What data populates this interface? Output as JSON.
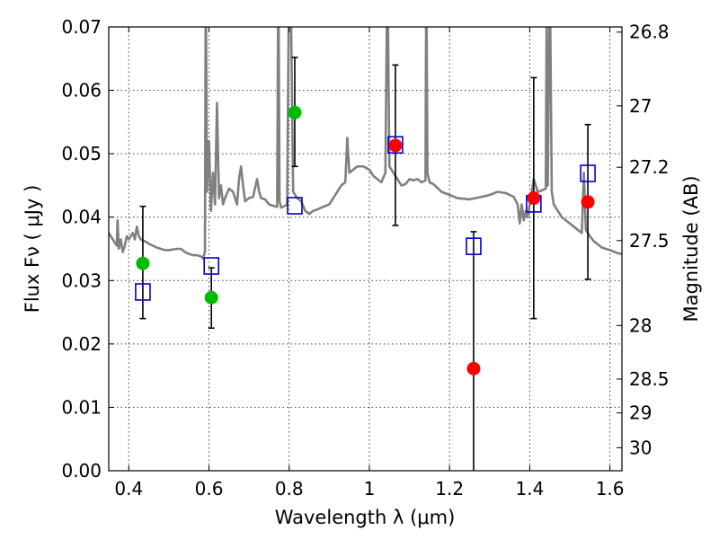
{
  "chart_data": {
    "type": "scatter",
    "xlabel": "Wavelength  λ (μm)",
    "ylabel": "Flux  Fν  ( μJy )",
    "ylabel_right": "Magnitude (AB)",
    "xlim": [
      0.35,
      1.63
    ],
    "ylim": [
      0.0,
      0.07
    ],
    "x_ticks": [
      0.4,
      0.6,
      0.8,
      1.0,
      1.2,
      1.4,
      1.6
    ],
    "x_tick_labels": [
      "0.4",
      "0.6",
      "0.8",
      "1",
      "1.2",
      "1.4",
      "1.6"
    ],
    "y_ticks": [
      0.0,
      0.01,
      0.02,
      0.03,
      0.04,
      0.05,
      0.06,
      0.07
    ],
    "y_tick_labels": [
      "0.00",
      "0.01",
      "0.02",
      "0.03",
      "0.04",
      "0.05",
      "0.06",
      "0.07"
    ],
    "right_ticks": [
      {
        "label": "26.8",
        "mag": 26.8
      },
      {
        "label": "27",
        "mag": 27.0
      },
      {
        "label": "27.2",
        "mag": 27.2
      },
      {
        "label": "27.5",
        "mag": 27.5
      },
      {
        "label": "28",
        "mag": 28.0
      },
      {
        "label": "28.5",
        "mag": 28.5
      },
      {
        "label": "29",
        "mag": 29.0
      },
      {
        "label": "30",
        "mag": 30.0
      }
    ],
    "grid": true,
    "colors": {
      "spectrum": "#808080",
      "green_points": "#00bb00",
      "red_points": "#ff0000",
      "model_squares": "#0000cc",
      "error_bars": "#000000"
    },
    "series": [
      {
        "type": "line",
        "points": [
          [
            0.35,
            0.0375
          ],
          [
            0.36,
            0.0365
          ],
          [
            0.365,
            0.036
          ],
          [
            0.37,
            0.0355
          ],
          [
            0.372,
            0.0395
          ],
          [
            0.375,
            0.035
          ],
          [
            0.38,
            0.0365
          ],
          [
            0.385,
            0.0345
          ],
          [
            0.39,
            0.0355
          ],
          [
            0.395,
            0.037
          ],
          [
            0.4,
            0.0365
          ],
          [
            0.41,
            0.0375
          ],
          [
            0.415,
            0.0365
          ],
          [
            0.42,
            0.0385
          ],
          [
            0.425,
            0.037
          ],
          [
            0.43,
            0.0365
          ],
          [
            0.44,
            0.0362
          ],
          [
            0.45,
            0.0358
          ],
          [
            0.46,
            0.0355
          ],
          [
            0.47,
            0.0352
          ],
          [
            0.48,
            0.035
          ],
          [
            0.49,
            0.0348
          ],
          [
            0.5,
            0.0348
          ],
          [
            0.51,
            0.0349
          ],
          [
            0.52,
            0.035
          ],
          [
            0.53,
            0.035
          ],
          [
            0.54,
            0.0345
          ],
          [
            0.55,
            0.0342
          ],
          [
            0.56,
            0.034
          ],
          [
            0.57,
            0.034
          ],
          [
            0.58,
            0.0338
          ],
          [
            0.585,
            0.0335
          ],
          [
            0.59,
            0.0345
          ],
          [
            0.592,
            0.08
          ],
          [
            0.595,
            0.044
          ],
          [
            0.6,
            0.052
          ],
          [
            0.605,
            0.041
          ],
          [
            0.61,
            0.047
          ],
          [
            0.615,
            0.042
          ],
          [
            0.62,
            0.058
          ],
          [
            0.625,
            0.043
          ],
          [
            0.63,
            0.045
          ],
          [
            0.635,
            0.042
          ],
          [
            0.64,
            0.043
          ],
          [
            0.65,
            0.0445
          ],
          [
            0.66,
            0.044
          ],
          [
            0.67,
            0.042
          ],
          [
            0.675,
            0.046
          ],
          [
            0.68,
            0.048
          ],
          [
            0.685,
            0.045
          ],
          [
            0.69,
            0.0425
          ],
          [
            0.7,
            0.043
          ],
          [
            0.71,
            0.0432
          ],
          [
            0.72,
            0.046
          ],
          [
            0.725,
            0.044
          ],
          [
            0.73,
            0.043
          ],
          [
            0.74,
            0.0428
          ],
          [
            0.75,
            0.042
          ],
          [
            0.76,
            0.0418
          ],
          [
            0.77,
            0.0416
          ],
          [
            0.773,
            0.08
          ],
          [
            0.776,
            0.0425
          ],
          [
            0.78,
            0.0415
          ],
          [
            0.79,
            0.0418
          ],
          [
            0.795,
            0.042
          ],
          [
            0.8,
            0.08
          ],
          [
            0.805,
            0.07
          ],
          [
            0.81,
            0.044
          ],
          [
            0.82,
            0.043
          ],
          [
            0.83,
            0.0425
          ],
          [
            0.84,
            0.041
          ],
          [
            0.85,
            0.0405
          ],
          [
            0.86,
            0.041
          ],
          [
            0.87,
            0.0412
          ],
          [
            0.88,
            0.0415
          ],
          [
            0.9,
            0.042
          ],
          [
            0.91,
            0.043
          ],
          [
            0.92,
            0.044
          ],
          [
            0.93,
            0.045
          ],
          [
            0.94,
            0.0455
          ],
          [
            0.945,
            0.0525
          ],
          [
            0.95,
            0.047
          ],
          [
            0.96,
            0.0475
          ],
          [
            0.97,
            0.048
          ],
          [
            0.985,
            0.048
          ],
          [
            1.0,
            0.0475
          ],
          [
            1.01,
            0.0465
          ],
          [
            1.02,
            0.046
          ],
          [
            1.03,
            0.0455
          ],
          [
            1.04,
            0.047
          ],
          [
            1.045,
            0.08
          ],
          [
            1.05,
            0.048
          ],
          [
            1.06,
            0.047
          ],
          [
            1.07,
            0.046
          ],
          [
            1.08,
            0.045
          ],
          [
            1.09,
            0.0452
          ],
          [
            1.1,
            0.046
          ],
          [
            1.11,
            0.0458
          ],
          [
            1.12,
            0.046
          ],
          [
            1.13,
            0.0455
          ],
          [
            1.14,
            0.0458
          ],
          [
            1.142,
            0.08
          ],
          [
            1.145,
            0.047
          ],
          [
            1.15,
            0.0455
          ],
          [
            1.16,
            0.0452
          ],
          [
            1.18,
            0.044
          ],
          [
            1.2,
            0.0435
          ],
          [
            1.22,
            0.043
          ],
          [
            1.25,
            0.0428
          ],
          [
            1.28,
            0.0432
          ],
          [
            1.3,
            0.0435
          ],
          [
            1.32,
            0.044
          ],
          [
            1.34,
            0.0438
          ],
          [
            1.36,
            0.0432
          ],
          [
            1.37,
            0.042
          ],
          [
            1.375,
            0.039
          ],
          [
            1.38,
            0.042
          ],
          [
            1.385,
            0.0395
          ],
          [
            1.39,
            0.041
          ],
          [
            1.395,
            0.04
          ],
          [
            1.4,
            0.042
          ],
          [
            1.41,
            0.046
          ],
          [
            1.42,
            0.044
          ],
          [
            1.43,
            0.0442
          ],
          [
            1.44,
            0.0445
          ],
          [
            1.442,
            0.07
          ],
          [
            1.445,
            0.045
          ],
          [
            1.45,
            0.08
          ],
          [
            1.455,
            0.044
          ],
          [
            1.46,
            0.042
          ],
          [
            1.47,
            0.041
          ],
          [
            1.48,
            0.04
          ],
          [
            1.49,
            0.0395
          ],
          [
            1.5,
            0.039
          ],
          [
            1.51,
            0.0385
          ],
          [
            1.52,
            0.038
          ],
          [
            1.53,
            0.0375
          ],
          [
            1.535,
            0.047
          ],
          [
            1.54,
            0.038
          ],
          [
            1.55,
            0.037
          ],
          [
            1.56,
            0.0362
          ],
          [
            1.58,
            0.0352
          ],
          [
            1.6,
            0.0348
          ],
          [
            1.62,
            0.0343
          ],
          [
            1.63,
            0.0342
          ]
        ]
      },
      {
        "type": "errorbar_points",
        "marker": "circle",
        "points": [
          {
            "x": 0.435,
            "y": 0.0327,
            "ylo": 0.024,
            "yhi": 0.0417
          },
          {
            "x": 0.606,
            "y": 0.0273,
            "ylo": 0.0225,
            "yhi": 0.032
          },
          {
            "x": 0.814,
            "y": 0.0565,
            "ylo": 0.048,
            "yhi": 0.0652
          }
        ]
      },
      {
        "type": "errorbar_points",
        "marker": "circle",
        "points": [
          {
            "x": 1.065,
            "y": 0.0513,
            "ylo": 0.0387,
            "yhi": 0.064
          },
          {
            "x": 1.26,
            "y": 0.0161,
            "ylo": 0.0,
            "yhi": 0.0377
          },
          {
            "x": 1.41,
            "y": 0.043,
            "ylo": 0.024,
            "yhi": 0.062
          },
          {
            "x": 1.545,
            "y": 0.0424,
            "ylo": 0.0302,
            "yhi": 0.0546
          }
        ]
      },
      {
        "type": "points",
        "marker": "open-square",
        "points": [
          {
            "x": 0.435,
            "y": 0.0282
          },
          {
            "x": 0.606,
            "y": 0.0323
          },
          {
            "x": 0.814,
            "y": 0.0418
          },
          {
            "x": 1.065,
            "y": 0.0514
          },
          {
            "x": 1.26,
            "y": 0.0354
          },
          {
            "x": 1.41,
            "y": 0.0421
          },
          {
            "x": 1.545,
            "y": 0.0469
          }
        ]
      }
    ]
  }
}
